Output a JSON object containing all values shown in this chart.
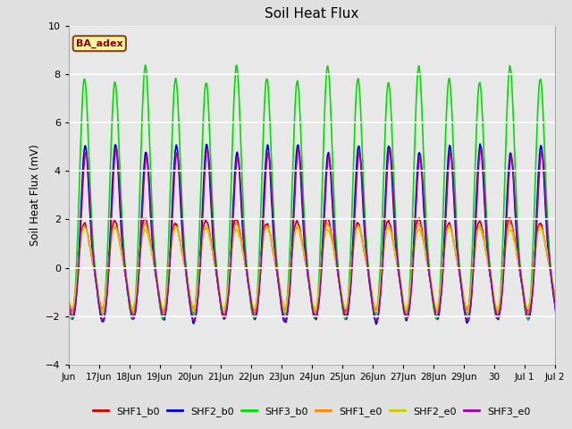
{
  "title": "Soil Heat Flux",
  "ylabel": "Soil Heat Flux (mV)",
  "xlabel": "",
  "ylim": [
    -4,
    10
  ],
  "background_color": "#e0e0e0",
  "plot_bg_color": "#e8e8e8",
  "grid_color": "white",
  "annotation_text": "BA_adex",
  "annotation_bg": "#f5f5a0",
  "annotation_border": "#8b4513",
  "series_names": [
    "SHF1_b0",
    "SHF2_b0",
    "SHF3_b0",
    "SHF1_e0",
    "SHF2_e0",
    "SHF3_e0"
  ],
  "series_colors": [
    "#cc0000",
    "#0000cc",
    "#00dd00",
    "#ff8800",
    "#cccc00",
    "#9900aa"
  ],
  "series_lw": [
    1.2,
    1.2,
    1.2,
    1.2,
    1.2,
    1.2
  ],
  "xtick_labels": [
    "Jun",
    "17Jun",
    "18Jun",
    "19Jun",
    "20Jun",
    "21Jun",
    "22Jun",
    "23Jun",
    "24Jun",
    "25Jun",
    "26Jun",
    "27Jun",
    "28Jun",
    "29Jun",
    "30",
    "Jul 1",
    "Jul 2"
  ],
  "legend_entries": [
    "SHF1_b0",
    "SHF2_b0",
    "SHF3_b0",
    "SHF1_e0",
    "SHF2_e0",
    "SHF3_e0"
  ],
  "legend_colors": [
    "#cc0000",
    "#0000cc",
    "#00dd00",
    "#ff8800",
    "#cccc00",
    "#9900aa"
  ]
}
